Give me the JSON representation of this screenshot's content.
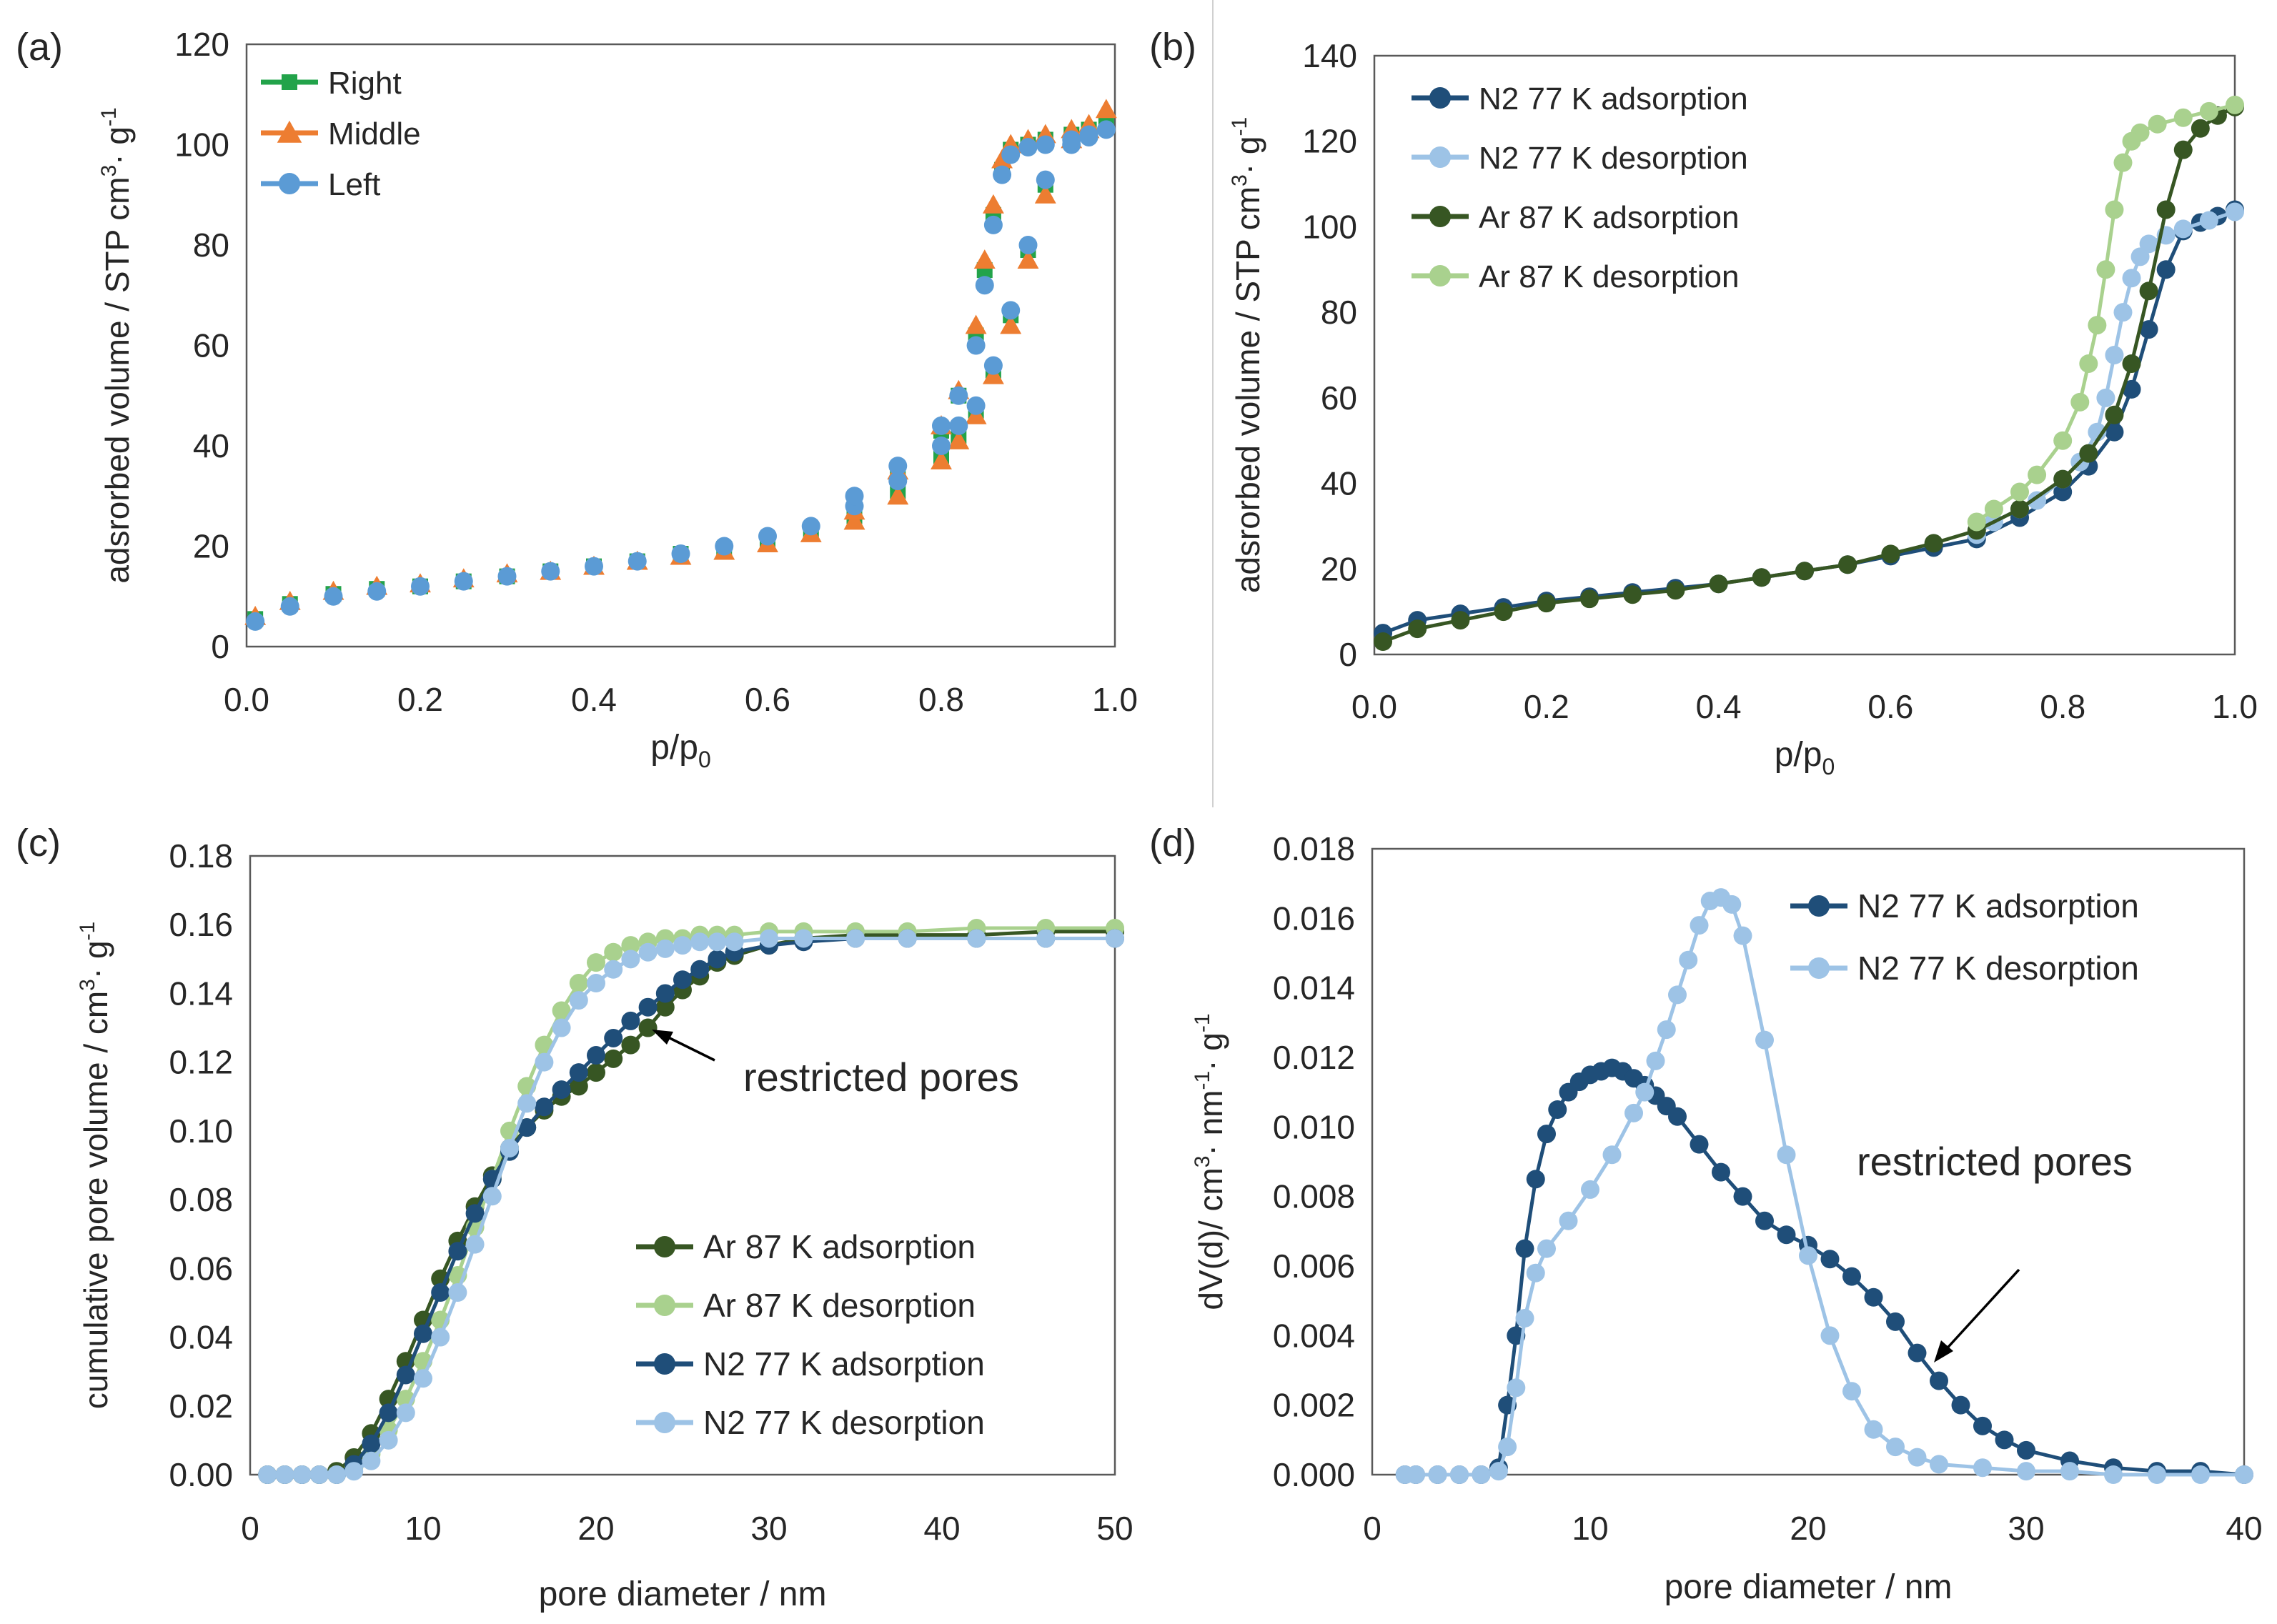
{
  "chart_data": [
    {
      "id": "a",
      "panel_label": "(a)",
      "type": "scatter",
      "title": "",
      "xlabel": "p/p",
      "xlabel_sub": "0",
      "ylabel": "adsrorbed volume / STP cm",
      "ylabel_sup": "3",
      "ylabel_tail": "· g",
      "ylabel_tail_sup": "-1",
      "xlim": [
        0,
        1.0
      ],
      "ylim": [
        0,
        120
      ],
      "xticks": [
        "0.0",
        "0.2",
        "0.4",
        "0.6",
        "0.8",
        "1.0"
      ],
      "yticks": [
        "0",
        "20",
        "40",
        "60",
        "80",
        "100",
        "120"
      ],
      "legend_position": "top-left",
      "series": [
        {
          "name": "Right",
          "color": "#22a34a",
          "marker": "square",
          "x": [
            0.01,
            0.05,
            0.1,
            0.15,
            0.2,
            0.25,
            0.3,
            0.35,
            0.4,
            0.45,
            0.5,
            0.55,
            0.6,
            0.65,
            0.7,
            0.75,
            0.8,
            0.82,
            0.84,
            0.86,
            0.88,
            0.9,
            0.92,
            0.95,
            0.97,
            0.99,
            0.97,
            0.95,
            0.92,
            0.9,
            0.88,
            0.87,
            0.86,
            0.85,
            0.84,
            0.82,
            0.8,
            0.75,
            0.7
          ],
          "y": [
            5.5,
            8.5,
            10.5,
            11.5,
            12,
            13,
            14,
            15,
            16,
            17,
            18.5,
            19.5,
            21,
            23,
            26,
            31,
            38,
            42,
            47,
            55,
            66,
            79,
            92,
            101,
            102.5,
            104,
            103,
            102,
            101,
            100,
            99,
            95,
            86,
            75,
            62,
            50,
            43,
            35,
            28
          ]
        },
        {
          "name": "Middle",
          "color": "#ed7d31",
          "marker": "triangle",
          "x": [
            0.01,
            0.05,
            0.1,
            0.15,
            0.2,
            0.25,
            0.3,
            0.35,
            0.4,
            0.45,
            0.5,
            0.55,
            0.6,
            0.65,
            0.7,
            0.75,
            0.8,
            0.82,
            0.84,
            0.86,
            0.88,
            0.9,
            0.92,
            0.95,
            0.97,
            0.99,
            0.97,
            0.95,
            0.92,
            0.9,
            0.88,
            0.87,
            0.86,
            0.85,
            0.84,
            0.82,
            0.8,
            0.75,
            0.7
          ],
          "y": [
            6,
            9,
            11,
            12,
            12.5,
            13.5,
            14.5,
            15,
            16,
            17,
            18,
            19,
            20.5,
            22.5,
            25,
            30,
            37,
            41,
            46,
            54,
            64,
            77,
            90,
            101,
            103,
            107,
            104,
            103,
            102,
            101,
            100,
            97,
            88,
            77,
            64,
            51,
            44,
            35,
            27
          ]
        },
        {
          "name": "Left",
          "color": "#5b9bd5",
          "marker": "circle",
          "x": [
            0.01,
            0.05,
            0.1,
            0.15,
            0.2,
            0.25,
            0.3,
            0.35,
            0.4,
            0.45,
            0.5,
            0.55,
            0.6,
            0.65,
            0.7,
            0.75,
            0.8,
            0.82,
            0.84,
            0.86,
            0.88,
            0.9,
            0.92,
            0.95,
            0.97,
            0.99,
            0.97,
            0.95,
            0.92,
            0.9,
            0.88,
            0.87,
            0.86,
            0.85,
            0.84,
            0.82,
            0.8,
            0.75,
            0.7
          ],
          "y": [
            5,
            8,
            10,
            11,
            12,
            13,
            14,
            15,
            16,
            17,
            18.5,
            20,
            22,
            24,
            28,
            33,
            40,
            44,
            48,
            56,
            67,
            80,
            93,
            100,
            101.5,
            103,
            102,
            101,
            100,
            99.5,
            98,
            94,
            84,
            72,
            60,
            50,
            44,
            36,
            30
          ]
        }
      ]
    },
    {
      "id": "b",
      "panel_label": "(b)",
      "type": "scatter",
      "title": "",
      "xlabel": "p/p",
      "xlabel_sub": "0",
      "ylabel": "adsrorbed volume / STP cm",
      "ylabel_sup": "3",
      "ylabel_tail": "· g",
      "ylabel_tail_sup": "-1",
      "xlim": [
        0,
        1.0
      ],
      "ylim": [
        0,
        140
      ],
      "xticks": [
        "0.0",
        "0.2",
        "0.4",
        "0.6",
        "0.8",
        "1.0"
      ],
      "yticks": [
        "0",
        "20",
        "40",
        "60",
        "80",
        "100",
        "120",
        "140"
      ],
      "legend_position": "top-left",
      "series": [
        {
          "name": "N2 77 K adsorption",
          "color": "#1f4e79",
          "marker": "circle",
          "x": [
            0.01,
            0.05,
            0.1,
            0.15,
            0.2,
            0.25,
            0.3,
            0.35,
            0.4,
            0.45,
            0.5,
            0.55,
            0.6,
            0.65,
            0.7,
            0.75,
            0.8,
            0.83,
            0.86,
            0.88,
            0.9,
            0.92,
            0.94,
            0.96,
            0.98,
            1.0
          ],
          "y": [
            5,
            8,
            9.5,
            11,
            12.5,
            13.5,
            14.5,
            15.5,
            16.5,
            18,
            19.5,
            21,
            23,
            25,
            27,
            32,
            38,
            44,
            52,
            62,
            76,
            90,
            99,
            101,
            102.5,
            104
          ]
        },
        {
          "name": "N2 77 K desorption",
          "color": "#9dc3e6",
          "marker": "circle",
          "x": [
            1.0,
            0.97,
            0.94,
            0.92,
            0.9,
            0.89,
            0.88,
            0.87,
            0.86,
            0.85,
            0.84,
            0.82,
            0.8,
            0.77,
            0.75,
            0.72,
            0.7
          ],
          "y": [
            103.5,
            101.5,
            99.5,
            98,
            96,
            93,
            88,
            80,
            70,
            60,
            52,
            45,
            41,
            36,
            34,
            31,
            28
          ]
        },
        {
          "name": "Ar 87 K adsorption",
          "color": "#375623",
          "marker": "circle",
          "x": [
            0.01,
            0.05,
            0.1,
            0.15,
            0.2,
            0.25,
            0.3,
            0.35,
            0.4,
            0.45,
            0.5,
            0.55,
            0.6,
            0.65,
            0.7,
            0.75,
            0.8,
            0.83,
            0.86,
            0.88,
            0.9,
            0.92,
            0.94,
            0.96,
            0.98,
            1.0
          ],
          "y": [
            3,
            6,
            8,
            10,
            12,
            13,
            14,
            15,
            16.5,
            18,
            19.5,
            21,
            23.5,
            26,
            29,
            34,
            41,
            47,
            56,
            68,
            85,
            104,
            118,
            123,
            126,
            128
          ]
        },
        {
          "name": "Ar 87 K desorption",
          "color": "#a9d18e",
          "marker": "circle",
          "x": [
            1.0,
            0.97,
            0.94,
            0.91,
            0.89,
            0.88,
            0.87,
            0.86,
            0.85,
            0.84,
            0.83,
            0.82,
            0.8,
            0.77,
            0.75,
            0.72,
            0.7
          ],
          "y": [
            128.5,
            127,
            125.5,
            124,
            122,
            120,
            115,
            104,
            90,
            77,
            68,
            59,
            50,
            42,
            38,
            34,
            31
          ]
        }
      ]
    },
    {
      "id": "c",
      "panel_label": "(c)",
      "type": "scatter",
      "title": "",
      "xlabel": "pore diameter / nm",
      "ylabel": "cumulative pore volume / cm",
      "ylabel_sup": "3",
      "ylabel_tail": "· g",
      "ylabel_tail_sup": "-1",
      "xlim": [
        0,
        50
      ],
      "ylim": [
        0,
        0.18
      ],
      "xticks": [
        "0",
        "10",
        "20",
        "30",
        "40",
        "50"
      ],
      "yticks": [
        "0.00",
        "0.02",
        "0.04",
        "0.06",
        "0.08",
        "0.10",
        "0.12",
        "0.14",
        "0.16",
        "0.18"
      ],
      "legend_position": "lower-right",
      "annotation": "restricted pores",
      "series": [
        {
          "name": "Ar 87 K adsorption",
          "color": "#375623",
          "marker": "circle",
          "x": [
            1,
            2,
            3,
            4,
            5,
            6,
            7,
            8,
            9,
            10,
            11,
            12,
            13,
            14,
            15,
            16,
            17,
            18,
            19,
            20,
            21,
            22,
            23,
            24,
            25,
            26,
            27,
            28,
            30,
            32,
            35,
            38,
            42,
            46,
            50
          ],
          "y": [
            0,
            0,
            0,
            0,
            0.001,
            0.005,
            0.012,
            0.022,
            0.033,
            0.045,
            0.057,
            0.068,
            0.078,
            0.087,
            0.095,
            0.101,
            0.106,
            0.11,
            0.113,
            0.117,
            0.121,
            0.125,
            0.13,
            0.136,
            0.141,
            0.145,
            0.149,
            0.151,
            0.154,
            0.156,
            0.157,
            0.157,
            0.157,
            0.158,
            0.158
          ]
        },
        {
          "name": "Ar 87 K desorption",
          "color": "#a9d18e",
          "marker": "circle",
          "x": [
            1,
            2,
            3,
            4,
            5,
            6,
            7,
            8,
            9,
            10,
            11,
            12,
            13,
            14,
            15,
            16,
            17,
            18,
            19,
            20,
            21,
            22,
            23,
            24,
            25,
            26,
            27,
            28,
            30,
            32,
            35,
            38,
            42,
            46,
            50
          ],
          "y": [
            0,
            0,
            0,
            0,
            0,
            0.002,
            0.006,
            0.013,
            0.022,
            0.033,
            0.045,
            0.058,
            0.072,
            0.086,
            0.1,
            0.113,
            0.125,
            0.135,
            0.143,
            0.149,
            0.152,
            0.154,
            0.155,
            0.156,
            0.156,
            0.157,
            0.157,
            0.157,
            0.158,
            0.158,
            0.158,
            0.158,
            0.159,
            0.159,
            0.159
          ]
        },
        {
          "name": "N2 77 K adsorption",
          "color": "#1f4e79",
          "marker": "circle",
          "x": [
            1,
            2,
            3,
            4,
            5,
            6,
            7,
            8,
            9,
            10,
            11,
            12,
            13,
            14,
            15,
            16,
            17,
            18,
            19,
            20,
            21,
            22,
            23,
            24,
            25,
            26,
            27,
            28,
            30,
            32,
            35,
            38,
            42,
            46,
            50
          ],
          "y": [
            0,
            0,
            0,
            0,
            0,
            0.003,
            0.009,
            0.018,
            0.029,
            0.041,
            0.053,
            0.065,
            0.076,
            0.086,
            0.094,
            0.101,
            0.107,
            0.112,
            0.117,
            0.122,
            0.127,
            0.132,
            0.136,
            0.14,
            0.144,
            0.147,
            0.15,
            0.152,
            0.154,
            0.155,
            0.156,
            0.156,
            0.156,
            0.156,
            0.156
          ]
        },
        {
          "name": "N2 77 K desorption",
          "color": "#9dc3e6",
          "marker": "circle",
          "x": [
            1,
            2,
            3,
            4,
            5,
            6,
            7,
            8,
            9,
            10,
            11,
            12,
            13,
            14,
            15,
            16,
            17,
            18,
            19,
            20,
            21,
            22,
            23,
            24,
            25,
            26,
            27,
            28,
            30,
            32,
            35,
            38,
            42,
            46,
            50
          ],
          "y": [
            0,
            0,
            0,
            0,
            0,
            0.001,
            0.004,
            0.01,
            0.018,
            0.028,
            0.04,
            0.053,
            0.067,
            0.081,
            0.095,
            0.108,
            0.12,
            0.13,
            0.138,
            0.143,
            0.147,
            0.15,
            0.152,
            0.153,
            0.154,
            0.155,
            0.155,
            0.155,
            0.156,
            0.156,
            0.156,
            0.156,
            0.156,
            0.156,
            0.156
          ]
        }
      ]
    },
    {
      "id": "d",
      "panel_label": "(d)",
      "type": "line",
      "title": "",
      "xlabel": "pore diameter / nm",
      "ylabel": "dV(d)/ cm",
      "ylabel_sup": "3",
      "ylabel_tail": "· nm",
      "ylabel_tail_sup": "-1",
      "ylabel_end": "· g",
      "ylabel_end_sup": "-1",
      "xlim": [
        0,
        40
      ],
      "ylim": [
        0,
        0.018
      ],
      "xticks": [
        "0",
        "10",
        "20",
        "30",
        "40"
      ],
      "yticks": [
        "0.000",
        "0.002",
        "0.004",
        "0.006",
        "0.008",
        "0.010",
        "0.012",
        "0.014",
        "0.016",
        "0.018"
      ],
      "legend_position": "top-right",
      "annotation": "restricted pores",
      "series": [
        {
          "name": "N2 77 K adsorption",
          "color": "#1f4e79",
          "marker": "circle",
          "x": [
            1.5,
            2,
            3,
            4,
            5,
            5.8,
            6.2,
            6.6,
            7,
            7.5,
            8,
            8.5,
            9,
            9.5,
            10,
            10.5,
            11,
            11.5,
            12,
            12.5,
            13,
            13.5,
            14,
            15,
            16,
            17,
            18,
            19,
            20,
            21,
            22,
            23,
            24,
            25,
            26,
            27,
            28,
            29,
            30,
            32,
            34,
            36,
            38,
            40
          ],
          "y": [
            0,
            0,
            0,
            0,
            0,
            0.0002,
            0.002,
            0.004,
            0.0065,
            0.0085,
            0.0098,
            0.0105,
            0.011,
            0.0113,
            0.0115,
            0.0116,
            0.0117,
            0.0116,
            0.0114,
            0.0112,
            0.0109,
            0.0106,
            0.0103,
            0.0095,
            0.0087,
            0.008,
            0.0073,
            0.0069,
            0.0066,
            0.0062,
            0.0057,
            0.0051,
            0.0044,
            0.0035,
            0.0027,
            0.002,
            0.0014,
            0.001,
            0.0007,
            0.0004,
            0.0002,
            0.0001,
            0.0001,
            0
          ]
        },
        {
          "name": "N2 77 K desorption",
          "color": "#9dc3e6",
          "marker": "circle",
          "x": [
            1.5,
            2,
            3,
            4,
            5,
            5.8,
            6.2,
            6.6,
            7,
            7.5,
            8,
            9,
            10,
            11,
            12,
            12.5,
            13,
            13.5,
            14,
            14.5,
            15,
            15.5,
            16,
            16.5,
            17,
            18,
            19,
            20,
            21,
            22,
            23,
            24,
            25,
            26,
            28,
            30,
            32,
            34,
            36,
            38,
            40
          ],
          "y": [
            0,
            0,
            0,
            0,
            0,
            0.0001,
            0.0008,
            0.0025,
            0.0045,
            0.0058,
            0.0065,
            0.0073,
            0.0082,
            0.0092,
            0.0104,
            0.011,
            0.0119,
            0.0128,
            0.0138,
            0.0148,
            0.0158,
            0.0165,
            0.0166,
            0.0164,
            0.0155,
            0.0125,
            0.0092,
            0.0063,
            0.004,
            0.0024,
            0.0013,
            0.0008,
            0.0005,
            0.0003,
            0.0002,
            0.0001,
            0.0001,
            0,
            0,
            0,
            0
          ]
        }
      ]
    }
  ]
}
